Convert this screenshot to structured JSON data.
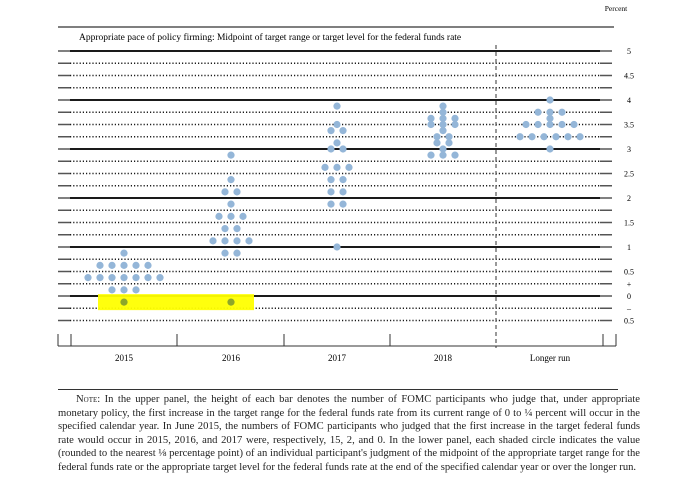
{
  "chart_data": {
    "type": "scatter",
    "title": "Appropriate pace of policy firming: Midpoint of target range or target level for the federal funds rate",
    "unit_label": "Percent",
    "ylim": [
      -0.5,
      5
    ],
    "gridline_step": 0.25,
    "y_ticks": [
      {
        "v": 5,
        "label": "5"
      },
      {
        "v": 4.5,
        "label": "4.5"
      },
      {
        "v": 4,
        "label": "4"
      },
      {
        "v": 3.5,
        "label": "3.5"
      },
      {
        "v": 3,
        "label": "3"
      },
      {
        "v": 2.5,
        "label": "2.5"
      },
      {
        "v": 2,
        "label": "2"
      },
      {
        "v": 1.5,
        "label": "1.5"
      },
      {
        "v": 1,
        "label": "1"
      },
      {
        "v": 0.5,
        "label": "0.5"
      },
      {
        "v": 0.25,
        "label": "+"
      },
      {
        "v": 0,
        "label": "0"
      },
      {
        "v": -0.25,
        "label": "–"
      },
      {
        "v": -0.5,
        "label": "0.5"
      }
    ],
    "categories": [
      "2015",
      "2016",
      "2017",
      "2018",
      "Longer run"
    ],
    "series": [
      {
        "name": "2015",
        "points": [
          {
            "value": 0.875,
            "count": 1
          },
          {
            "value": 0.625,
            "count": 5
          },
          {
            "value": 0.375,
            "count": 7
          },
          {
            "value": 0.125,
            "count": 3
          },
          {
            "value": -0.125,
            "count": 1
          }
        ]
      },
      {
        "name": "2016",
        "points": [
          {
            "value": 2.875,
            "count": 1
          },
          {
            "value": 2.375,
            "count": 1
          },
          {
            "value": 2.125,
            "count": 2
          },
          {
            "value": 1.875,
            "count": 1
          },
          {
            "value": 1.625,
            "count": 3
          },
          {
            "value": 1.375,
            "count": 2
          },
          {
            "value": 1.125,
            "count": 4
          },
          {
            "value": 0.875,
            "count": 2
          },
          {
            "value": -0.125,
            "count": 1
          }
        ]
      },
      {
        "name": "2017",
        "points": [
          {
            "value": 3.875,
            "count": 1
          },
          {
            "value": 3.5,
            "count": 1
          },
          {
            "value": 3.375,
            "count": 2
          },
          {
            "value": 3.125,
            "count": 1
          },
          {
            "value": 3.0,
            "count": 2
          },
          {
            "value": 2.625,
            "count": 3
          },
          {
            "value": 2.375,
            "count": 2
          },
          {
            "value": 2.125,
            "count": 2
          },
          {
            "value": 1.875,
            "count": 2
          },
          {
            "value": 1.0,
            "count": 1
          }
        ]
      },
      {
        "name": "2018",
        "points": [
          {
            "value": 3.875,
            "count": 1
          },
          {
            "value": 3.75,
            "count": 1
          },
          {
            "value": 3.625,
            "count": 3
          },
          {
            "value": 3.5,
            "count": 3
          },
          {
            "value": 3.375,
            "count": 1
          },
          {
            "value": 3.25,
            "count": 2
          },
          {
            "value": 3.125,
            "count": 2
          },
          {
            "value": 3.0,
            "count": 1
          },
          {
            "value": 2.875,
            "count": 3
          }
        ]
      },
      {
        "name": "Longer run",
        "points": [
          {
            "value": 4.0,
            "count": 1
          },
          {
            "value": 3.75,
            "count": 3
          },
          {
            "value": 3.625,
            "count": 1
          },
          {
            "value": 3.5,
            "count": 5
          },
          {
            "value": 3.25,
            "count": 6
          },
          {
            "value": 3.0,
            "count": 1
          }
        ]
      }
    ],
    "highlight": {
      "value": -0.125,
      "categories": [
        "2015",
        "2016"
      ],
      "color": "#ffff00"
    },
    "colors": {
      "dot": "#94b6d8",
      "dot_highlighted": "#8ea62a",
      "grid": "#1a1a1a"
    }
  },
  "note": {
    "lead": "Note:",
    "text": "In the upper panel, the height of each bar denotes the number of FOMC participants who judge that, under appropriate monetary policy, the first increase in the target range for the federal funds rate from its current range of 0 to ¼ percent will occur in the specified calendar year. In June 2015, the numbers of FOMC participants who judged that the first increase in the target federal funds rate would occur in 2015, 2016, and 2017 were, respectively, 15, 2, and 0. In the lower panel, each shaded circle indicates the value (rounded to the nearest ⅛ percentage point) of an individual participant's judgment of the midpoint of the appropriate target range for the federal funds rate or the appropriate target level for the federal funds rate at the end of the specified calendar year or over the longer run."
  }
}
